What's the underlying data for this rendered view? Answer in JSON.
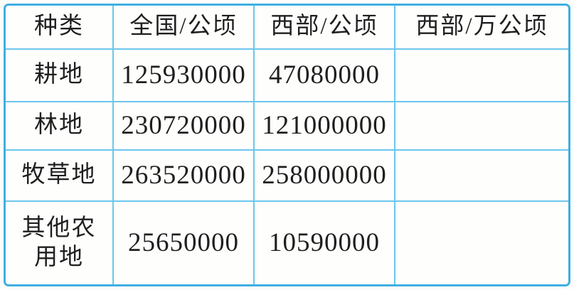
{
  "table": {
    "border_color": "#3fafe2",
    "grid_line_color": "#6cc6ec",
    "background_color": "#fefefd",
    "header": {
      "type": "种类",
      "national_ha": "全国/公顷",
      "west_ha": "西部/公顷",
      "west_wan_ha": "西部/万公顷"
    },
    "rows": [
      {
        "label": "耕地",
        "national": "125930000",
        "west": "47080000",
        "west_wan": ""
      },
      {
        "label": "林地",
        "national": "230720000",
        "west": "121000000",
        "west_wan": ""
      },
      {
        "label": "牧草地",
        "national": "263520000",
        "west": "258000000",
        "west_wan": ""
      },
      {
        "label": "其他农\n用地",
        "national": "25650000",
        "west": "10590000",
        "west_wan": ""
      }
    ]
  },
  "chart_data": {
    "type": "table",
    "title": "",
    "columns": [
      "种类",
      "全国/公顷",
      "西部/公顷",
      "西部/万公顷"
    ],
    "rows": [
      [
        "耕地",
        125930000,
        47080000,
        ""
      ],
      [
        "林地",
        230720000,
        121000000,
        ""
      ],
      [
        "牧草地",
        263520000,
        258000000,
        ""
      ],
      [
        "其他农用地",
        25650000,
        10590000,
        ""
      ]
    ],
    "notes": "last column (西部/万公顷) is blank in all rows"
  }
}
